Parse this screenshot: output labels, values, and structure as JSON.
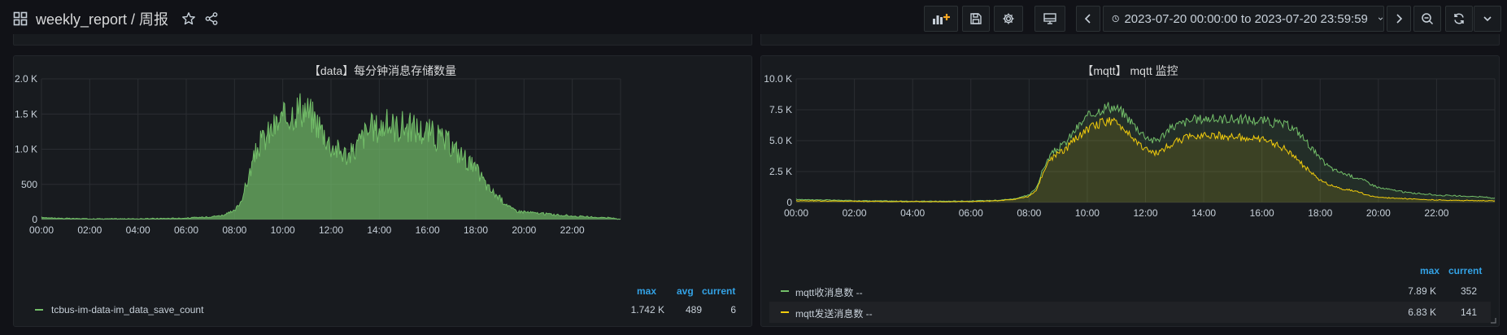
{
  "header": {
    "title": "weekly_report / 周报",
    "time_range": "2023-07-20 00:00:00 to 2023-07-20 23:59:59"
  },
  "colors": {
    "bg": "#111217",
    "panel": "#181b1f",
    "green": "#73bf69",
    "yellow": "#f2cc0c",
    "legend_head": "#33a2e5"
  },
  "panels": [
    {
      "title": "【data】每分钟消息存储数量",
      "y_ticks": [
        "0",
        "500",
        "1.0 K",
        "1.5 K",
        "2.0 K"
      ],
      "x_ticks": [
        "00:00",
        "02:00",
        "04:00",
        "06:00",
        "08:00",
        "10:00",
        "12:00",
        "14:00",
        "16:00",
        "18:00",
        "20:00",
        "22:00"
      ],
      "legend_headers": [
        "max",
        "avg",
        "current"
      ],
      "legend": [
        {
          "name": "tcbus-im-data-im_data_save_count",
          "max": "1.742 K",
          "avg": "489",
          "current": "6"
        }
      ]
    },
    {
      "title": "【mqtt】 mqtt 监控",
      "y_ticks": [
        "0",
        "2.5 K",
        "5.0 K",
        "7.5 K",
        "10.0 K"
      ],
      "x_ticks": [
        "00:00",
        "02:00",
        "04:00",
        "06:00",
        "08:00",
        "10:00",
        "12:00",
        "14:00",
        "16:00",
        "18:00",
        "20:00",
        "22:00"
      ],
      "legend_headers": [
        "max",
        "current"
      ],
      "legend": [
        {
          "name": "mqtt收消息数 --",
          "max": "7.89 K",
          "current": "352"
        },
        {
          "name": "mqtt发送消息数 --",
          "max": "6.83 K",
          "current": "141"
        }
      ]
    }
  ],
  "chart_data": [
    {
      "type": "area",
      "title": "【data】每分钟消息存储数量",
      "xlabel": "",
      "ylabel": "",
      "ylim": [
        0,
        2000
      ],
      "xlim": [
        "00:00",
        "24:00"
      ],
      "grid": true,
      "legend": "bottom",
      "series": [
        {
          "name": "tcbus-im-data-im_data_save_count",
          "color": "#73bf69",
          "x_hours": [
            0,
            1,
            2,
            3,
            4,
            5,
            6,
            6.5,
            7,
            7.5,
            8,
            8.25,
            8.5,
            8.75,
            9,
            9.25,
            9.5,
            9.75,
            10,
            10.25,
            10.5,
            10.75,
            11,
            11.25,
            11.5,
            11.75,
            12,
            12.25,
            12.5,
            12.75,
            13,
            13.25,
            13.5,
            13.75,
            14,
            14.25,
            14.5,
            14.75,
            15,
            15.25,
            15.5,
            15.75,
            16,
            16.25,
            16.5,
            16.75,
            17,
            17.25,
            17.5,
            17.75,
            18,
            18.25,
            18.5,
            18.75,
            19,
            19.25,
            19.5,
            19.75,
            20,
            20.5,
            21,
            21.5,
            22,
            22.5,
            23,
            23.5,
            24
          ],
          "values": [
            30,
            15,
            10,
            10,
            10,
            15,
            20,
            30,
            40,
            60,
            120,
            250,
            500,
            800,
            1050,
            1150,
            1250,
            1350,
            1400,
            1500,
            1550,
            1600,
            1550,
            1450,
            1350,
            1200,
            1050,
            1000,
            950,
            900,
            1000,
            1150,
            1250,
            1300,
            1300,
            1350,
            1350,
            1300,
            1350,
            1300,
            1300,
            1250,
            1250,
            1200,
            1150,
            1100,
            1050,
            950,
            900,
            800,
            700,
            600,
            450,
            380,
            300,
            230,
            150,
            120,
            110,
            90,
            80,
            60,
            50,
            40,
            30,
            25,
            6
          ]
        }
      ]
    },
    {
      "type": "area",
      "title": "【mqtt】 mqtt 监控",
      "xlabel": "",
      "ylabel": "",
      "ylim": [
        0,
        10000
      ],
      "xlim": [
        "00:00",
        "24:00"
      ],
      "grid": true,
      "legend": "bottom",
      "series": [
        {
          "name": "mqtt收消息数 --",
          "color": "#73bf69",
          "x_hours": [
            0,
            1,
            2,
            3,
            4,
            5,
            6,
            6.5,
            7,
            7.5,
            8,
            8.25,
            8.5,
            8.75,
            9,
            9.25,
            9.5,
            9.75,
            10,
            10.25,
            10.5,
            10.75,
            11,
            11.25,
            11.5,
            11.75,
            12,
            12.25,
            12.5,
            12.75,
            13,
            13.25,
            13.5,
            13.75,
            14,
            14.25,
            14.5,
            14.75,
            15,
            15.25,
            15.5,
            15.75,
            16,
            16.25,
            16.5,
            16.75,
            17,
            17.25,
            17.5,
            17.75,
            18,
            18.25,
            18.5,
            18.75,
            19,
            19.25,
            19.5,
            19.75,
            20,
            20.5,
            21,
            21.5,
            22,
            22.5,
            23,
            23.5,
            24
          ],
          "values": [
            250,
            200,
            150,
            120,
            100,
            100,
            120,
            150,
            200,
            300,
            600,
            1200,
            2800,
            3900,
            4400,
            4800,
            5600,
            6300,
            6900,
            7300,
            7600,
            7800,
            7600,
            7200,
            6600,
            5900,
            5400,
            5000,
            5200,
            5800,
            6200,
            6400,
            6600,
            6700,
            6800,
            6800,
            6700,
            6800,
            6750,
            6700,
            6750,
            6600,
            6650,
            6500,
            6400,
            6300,
            6100,
            5700,
            5000,
            4300,
            3500,
            3000,
            2600,
            2400,
            2200,
            2000,
            1800,
            1500,
            1200,
            1000,
            800,
            700,
            600,
            550,
            500,
            450,
            352
          ]
        },
        {
          "name": "mqtt发送消息数 --",
          "color": "#f2cc0c",
          "x_hours": [
            0,
            1,
            2,
            3,
            4,
            5,
            6,
            6.5,
            7,
            7.5,
            8,
            8.25,
            8.5,
            8.75,
            9,
            9.25,
            9.5,
            9.75,
            10,
            10.25,
            10.5,
            10.75,
            11,
            11.25,
            11.5,
            11.75,
            12,
            12.25,
            12.5,
            12.75,
            13,
            13.25,
            13.5,
            13.75,
            14,
            14.25,
            14.5,
            14.75,
            15,
            15.25,
            15.5,
            15.75,
            16,
            16.25,
            16.5,
            16.75,
            17,
            17.25,
            17.5,
            17.75,
            18,
            18.25,
            18.5,
            18.75,
            19,
            19.25,
            19.5,
            19.75,
            20,
            20.5,
            21,
            21.5,
            22,
            22.5,
            23,
            23.5,
            24
          ],
          "values": [
            150,
            120,
            100,
            80,
            70,
            70,
            80,
            100,
            150,
            250,
            500,
            1000,
            2500,
            3500,
            4000,
            4300,
            4900,
            5500,
            5900,
            6200,
            6500,
            6600,
            6400,
            6000,
            5500,
            4800,
            4300,
            4000,
            4100,
            4500,
            4900,
            5100,
            5300,
            5400,
            5500,
            5500,
            5400,
            5400,
            5300,
            5250,
            5200,
            5100,
            5050,
            4900,
            4700,
            4400,
            4000,
            3400,
            2800,
            2300,
            1800,
            1500,
            1300,
            1100,
            1000,
            900,
            700,
            500,
            400,
            350,
            300,
            250,
            200,
            180,
            160,
            150,
            141
          ]
        }
      ]
    }
  ]
}
